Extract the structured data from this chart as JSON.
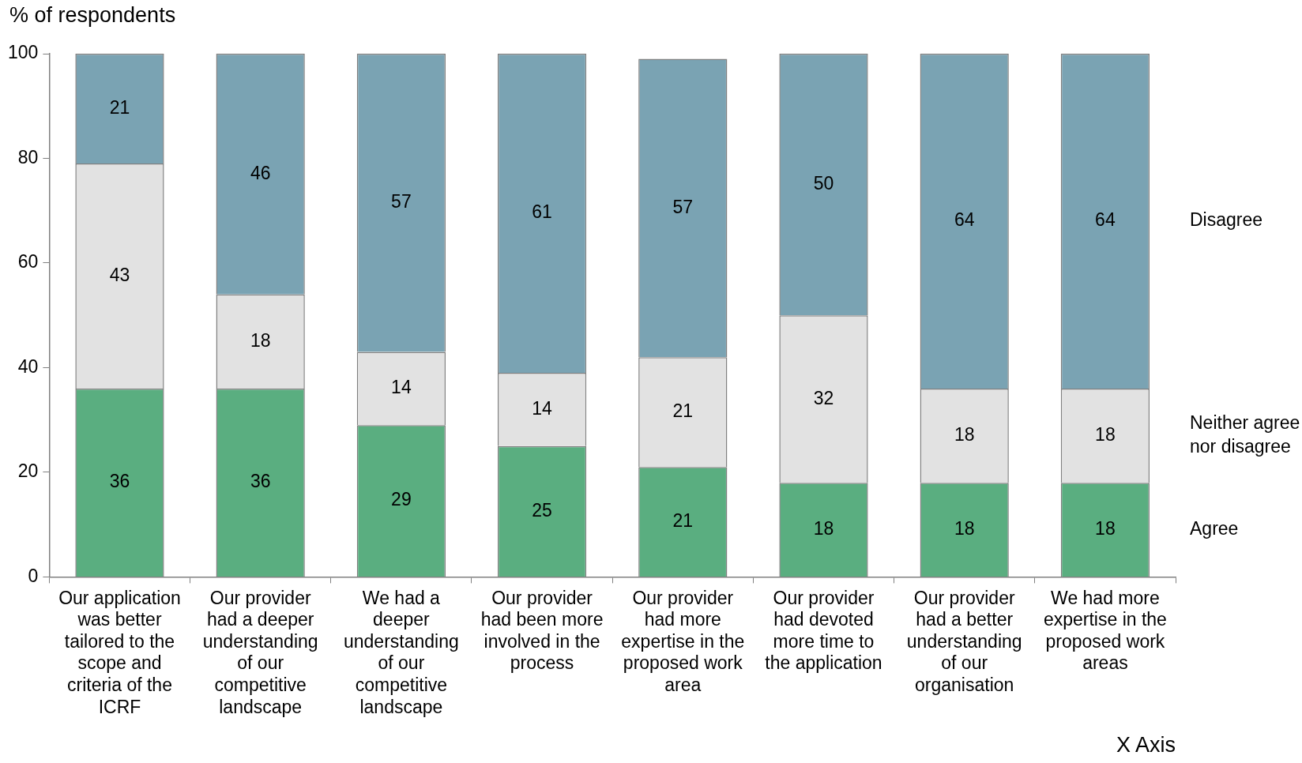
{
  "chart_data": {
    "type": "bar",
    "stacked": true,
    "ylabel": "% of respondents",
    "xlabel": "X Axis",
    "categories": [
      "Our application was better tailored to the scope and criteria of the ICRF",
      "Our provider had a deeper understanding of our competitive landscape",
      "We had a deeper understanding of our competitive landscape",
      "Our provider had been more involved in the process",
      "Our provider had more expertise in the proposed work area",
      "Our provider had devoted more time to the application",
      "Our provider had a better understanding of our organisation",
      "We had more expertise in the proposed work areas"
    ],
    "series": [
      {
        "name": "Agree",
        "color": "#5aae80",
        "values": [
          36,
          36,
          29,
          25,
          21,
          18,
          18,
          18
        ]
      },
      {
        "name": "Neither agree nor disagree",
        "color": "#e2e2e2",
        "values": [
          43,
          18,
          14,
          14,
          21,
          32,
          18,
          18
        ]
      },
      {
        "name": "Disagree",
        "color": "#7aa3b3",
        "values": [
          21,
          46,
          57,
          61,
          57,
          50,
          64,
          64
        ]
      }
    ],
    "ylim": [
      0,
      100
    ],
    "yticks": [
      0,
      20,
      40,
      60,
      80,
      100
    ],
    "grid": false,
    "legend": "right",
    "data_labels": true
  }
}
